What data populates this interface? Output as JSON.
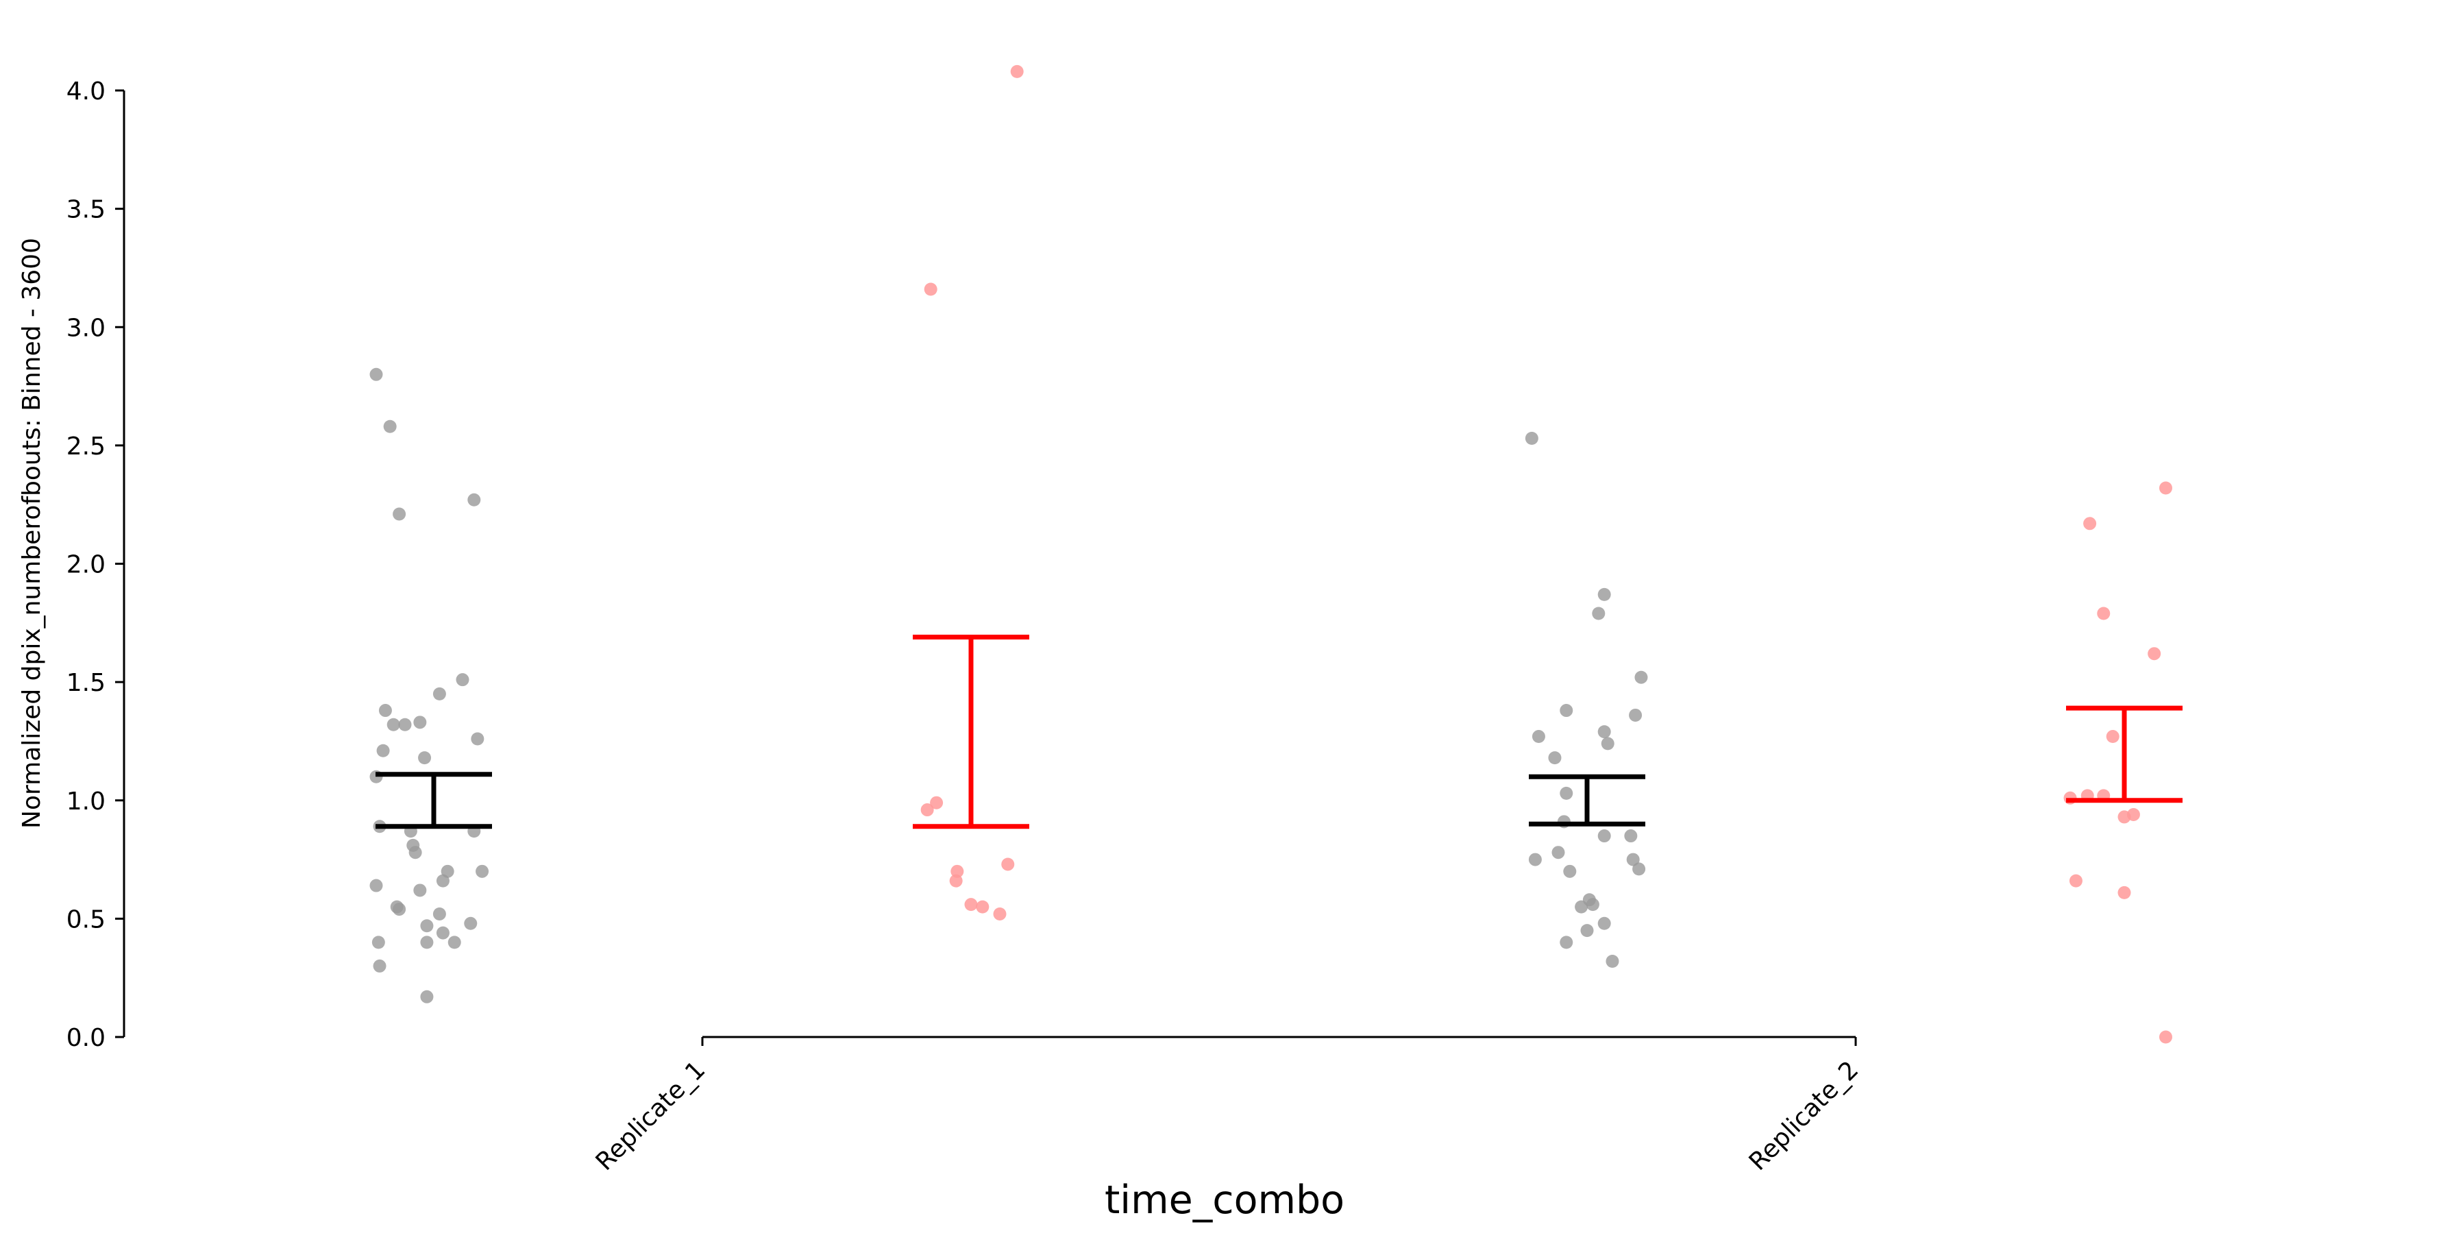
{
  "chart_data": {
    "type": "scatter",
    "subtype": "strip plot with mean and SEM error bars",
    "title": "",
    "xlabel": "time_combo",
    "ylabel": "Normalized dpix_numberofbouts: Binned - 3600",
    "ylim": [
      0.0,
      4.0
    ],
    "yticks": [
      "0.0",
      "0.5",
      "1.0",
      "1.5",
      "2.0",
      "2.5",
      "3.0",
      "3.5",
      "4.0"
    ],
    "categories": [
      "Replicate_1",
      "Replicate_2"
    ],
    "grid": false,
    "legend": "none",
    "colors": {
      "group_a": "#000000",
      "group_b": "#ff0000",
      "group_a_points": "#999999",
      "group_b_points": "#ff9999"
    },
    "series": [
      {
        "category": "Replicate_1",
        "color": "#000000",
        "points": [
          [
            -0.05,
            2.8
          ],
          [
            -0.038,
            2.58
          ],
          [
            -0.03,
            2.21
          ],
          [
            0.035,
            2.27
          ],
          [
            0.025,
            1.51
          ],
          [
            0.005,
            1.45
          ],
          [
            -0.042,
            1.38
          ],
          [
            -0.035,
            1.32
          ],
          [
            -0.025,
            1.32
          ],
          [
            -0.012,
            1.33
          ],
          [
            0.038,
            1.26
          ],
          [
            -0.044,
            1.21
          ],
          [
            -0.008,
            1.18
          ],
          [
            -0.05,
            1.1
          ],
          [
            -0.047,
            0.89
          ],
          [
            -0.02,
            0.87
          ],
          [
            0.035,
            0.87
          ],
          [
            -0.018,
            0.81
          ],
          [
            -0.016,
            0.78
          ],
          [
            0.012,
            0.7
          ],
          [
            0.042,
            0.7
          ],
          [
            0.008,
            0.66
          ],
          [
            -0.05,
            0.64
          ],
          [
            -0.012,
            0.62
          ],
          [
            -0.032,
            0.55
          ],
          [
            -0.03,
            0.54
          ],
          [
            0.005,
            0.52
          ],
          [
            -0.006,
            0.47
          ],
          [
            0.032,
            0.48
          ],
          [
            0.008,
            0.44
          ],
          [
            -0.048,
            0.4
          ],
          [
            -0.006,
            0.4
          ],
          [
            0.018,
            0.4
          ],
          [
            -0.047,
            0.3
          ],
          [
            -0.006,
            0.17
          ]
        ],
        "error_bar": {
          "lower": 0.89,
          "upper": 1.11
        }
      },
      {
        "category": "Replicate_1",
        "color": "#ff0000",
        "points": [
          [
            0.04,
            4.08
          ],
          [
            -0.035,
            3.16
          ],
          [
            -0.038,
            0.96
          ],
          [
            -0.03,
            0.99
          ],
          [
            -0.012,
            0.7
          ],
          [
            -0.013,
            0.66
          ],
          [
            0.032,
            0.73
          ],
          [
            0.0,
            0.56
          ],
          [
            0.01,
            0.55
          ],
          [
            0.025,
            0.52
          ]
        ],
        "error_bar": {
          "lower": 0.89,
          "upper": 1.69
        }
      },
      {
        "category": "Replicate_2",
        "color": "#000000",
        "points": [
          [
            -0.048,
            2.53
          ],
          [
            0.015,
            1.87
          ],
          [
            0.01,
            1.79
          ],
          [
            0.047,
            1.52
          ],
          [
            -0.018,
            1.38
          ],
          [
            0.042,
            1.36
          ],
          [
            0.015,
            1.29
          ],
          [
            -0.042,
            1.27
          ],
          [
            0.018,
            1.24
          ],
          [
            -0.028,
            1.18
          ],
          [
            -0.018,
            1.03
          ],
          [
            -0.02,
            0.91
          ],
          [
            0.015,
            0.85
          ],
          [
            0.038,
            0.85
          ],
          [
            -0.025,
            0.78
          ],
          [
            -0.045,
            0.75
          ],
          [
            0.04,
            0.75
          ],
          [
            -0.015,
            0.7
          ],
          [
            0.045,
            0.71
          ],
          [
            0.002,
            0.58
          ],
          [
            -0.005,
            0.55
          ],
          [
            0.005,
            0.56
          ],
          [
            0.015,
            0.48
          ],
          [
            0.0,
            0.45
          ],
          [
            -0.018,
            0.4
          ],
          [
            0.022,
            0.32
          ]
        ],
        "error_bar": {
          "lower": 0.9,
          "upper": 1.1
        }
      },
      {
        "category": "Replicate_2",
        "color": "#ff0000",
        "points": [
          [
            0.036,
            2.32
          ],
          [
            -0.03,
            2.17
          ],
          [
            -0.018,
            1.79
          ],
          [
            0.026,
            1.62
          ],
          [
            -0.01,
            1.27
          ],
          [
            -0.047,
            1.01
          ],
          [
            -0.032,
            1.02
          ],
          [
            -0.018,
            1.02
          ],
          [
            0.0,
            0.93
          ],
          [
            0.008,
            0.94
          ],
          [
            -0.042,
            0.66
          ],
          [
            0.0,
            0.61
          ],
          [
            0.036,
            0.0
          ]
        ],
        "error_bar": {
          "lower": 1.0,
          "upper": 1.39
        }
      }
    ]
  }
}
